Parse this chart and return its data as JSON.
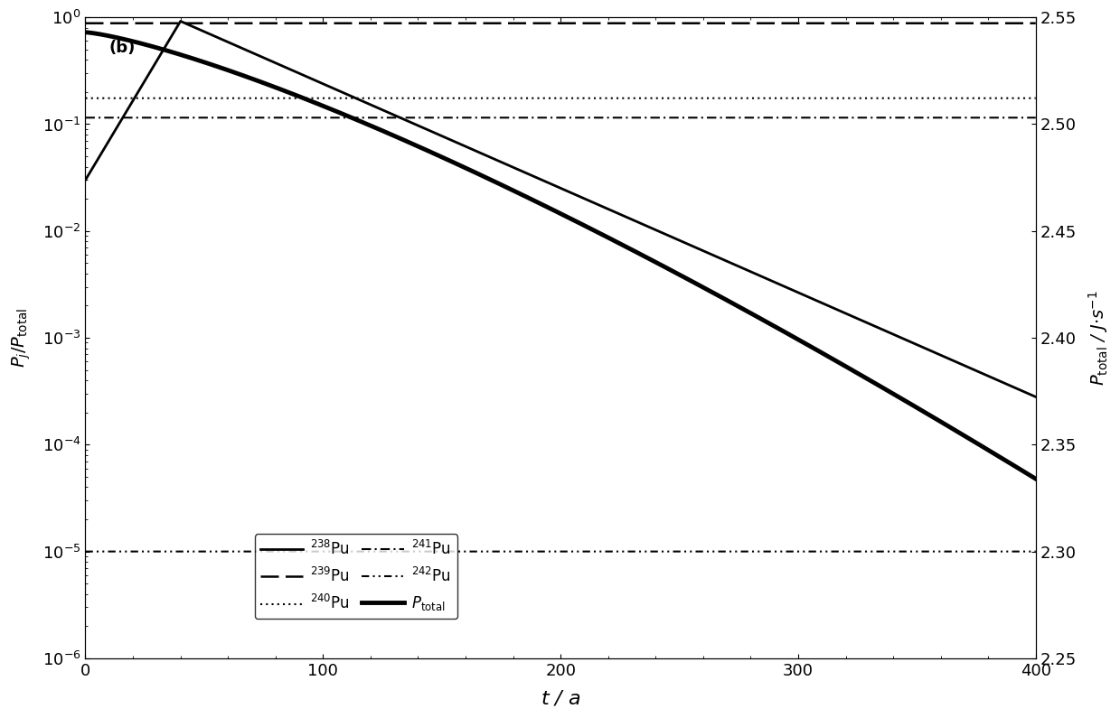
{
  "title_label": "(b)",
  "xlabel": "$t$ / a",
  "ylabel_left": "$P_j / P_\\mathrm{total}$",
  "ylabel_right": "$P_\\mathrm{total}$ / J·s$^{-1}$",
  "xlim": [
    0,
    400
  ],
  "ylim_log_min": -6,
  "ylim_log_max": 0,
  "ylim_right": [
    2.25,
    2.55
  ],
  "x_ticks": [
    0,
    100,
    200,
    300,
    400
  ],
  "right_y_ticks": [
    2.25,
    2.3,
    2.35,
    2.4,
    2.45,
    2.5,
    2.55
  ],
  "Pu239_level": 0.88,
  "Pu240_level": 0.175,
  "Pu241_level": 0.115,
  "Pu242_level": 1e-05,
  "Pu238_t0": 0.03,
  "Pu238_peak_t": 40,
  "Pu238_peak_val": 0.92,
  "Pu238_t400_val": 0.00028,
  "Ptotal_t0": 2.543,
  "Ptotal_t400": 2.334,
  "Ptotal_bend_t": 215,
  "background_color": "#ffffff"
}
